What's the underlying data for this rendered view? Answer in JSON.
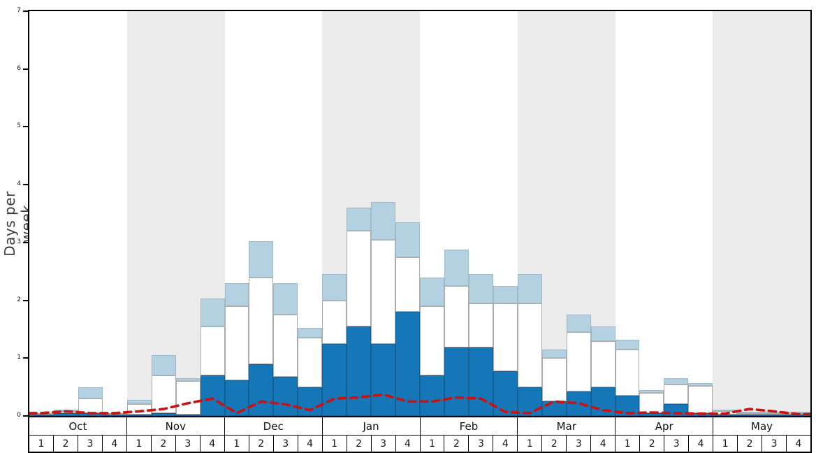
{
  "colors": {
    "heavy_snow": "#1577b8",
    "moderate_snow": "#ffffff",
    "light_snow": "#b3d1e0",
    "rain_line": "#cc1111",
    "month_band": "#ebebeb",
    "axis": "#000000"
  },
  "chart_data": {
    "type": "bar",
    "title": "",
    "xlabel": "",
    "ylabel": "Days per week",
    "ylim": [
      0,
      7
    ],
    "yticks": [
      0,
      1,
      2,
      3,
      4,
      5,
      6,
      7
    ],
    "grid": false,
    "legend": "none",
    "months": [
      "Oct",
      "Nov",
      "Dec",
      "Jan",
      "Feb",
      "Mar",
      "Apr",
      "May"
    ],
    "weeks_per_month": 4,
    "week_labels": [
      "1",
      "2",
      "3",
      "4"
    ],
    "shaded_months": [
      "Nov",
      "Jan",
      "Mar",
      "May"
    ],
    "series": [
      {
        "name": "heavy_snow",
        "stack_order": 1,
        "values": [
          0.03,
          0.05,
          0.05,
          0.02,
          0.03,
          0.05,
          0.03,
          0.7,
          0.62,
          0.9,
          0.68,
          0.5,
          1.25,
          1.55,
          1.25,
          1.8,
          0.7,
          1.18,
          1.18,
          0.77,
          0.5,
          0.25,
          0.42,
          0.5,
          0.35,
          0.05,
          0.2,
          0.05,
          0.03,
          0.02,
          0.01,
          0.01
        ]
      },
      {
        "name": "moderate_snow",
        "stack_order": 2,
        "values": [
          0.02,
          0.03,
          0.25,
          0.03,
          0.17,
          0.65,
          0.57,
          0.85,
          1.28,
          1.5,
          1.07,
          0.85,
          0.75,
          1.65,
          1.8,
          0.95,
          1.2,
          1.07,
          0.77,
          1.18,
          1.45,
          0.75,
          1.03,
          0.8,
          0.8,
          0.35,
          0.35,
          0.47,
          0.05,
          0.02,
          0.02,
          0.02
        ]
      },
      {
        "name": "light_snow",
        "stack_order": 3,
        "values": [
          0.0,
          0.02,
          0.2,
          0.0,
          0.08,
          0.35,
          0.05,
          0.48,
          0.4,
          0.62,
          0.55,
          0.17,
          0.45,
          0.4,
          0.65,
          0.6,
          0.5,
          0.63,
          0.5,
          0.3,
          0.5,
          0.15,
          0.3,
          0.25,
          0.17,
          0.05,
          0.1,
          0.05,
          0.02,
          0.02,
          0.01,
          0.01
        ]
      }
    ],
    "line": {
      "name": "rain_line",
      "style": "dashed",
      "values": [
        0.05,
        0.08,
        0.05,
        0.05,
        0.08,
        0.12,
        0.22,
        0.3,
        0.05,
        0.25,
        0.2,
        0.1,
        0.3,
        0.32,
        0.37,
        0.25,
        0.25,
        0.32,
        0.3,
        0.07,
        0.05,
        0.25,
        0.22,
        0.1,
        0.05,
        0.06,
        0.05,
        0.04,
        0.04,
        0.12,
        0.08,
        0.03
      ]
    }
  }
}
